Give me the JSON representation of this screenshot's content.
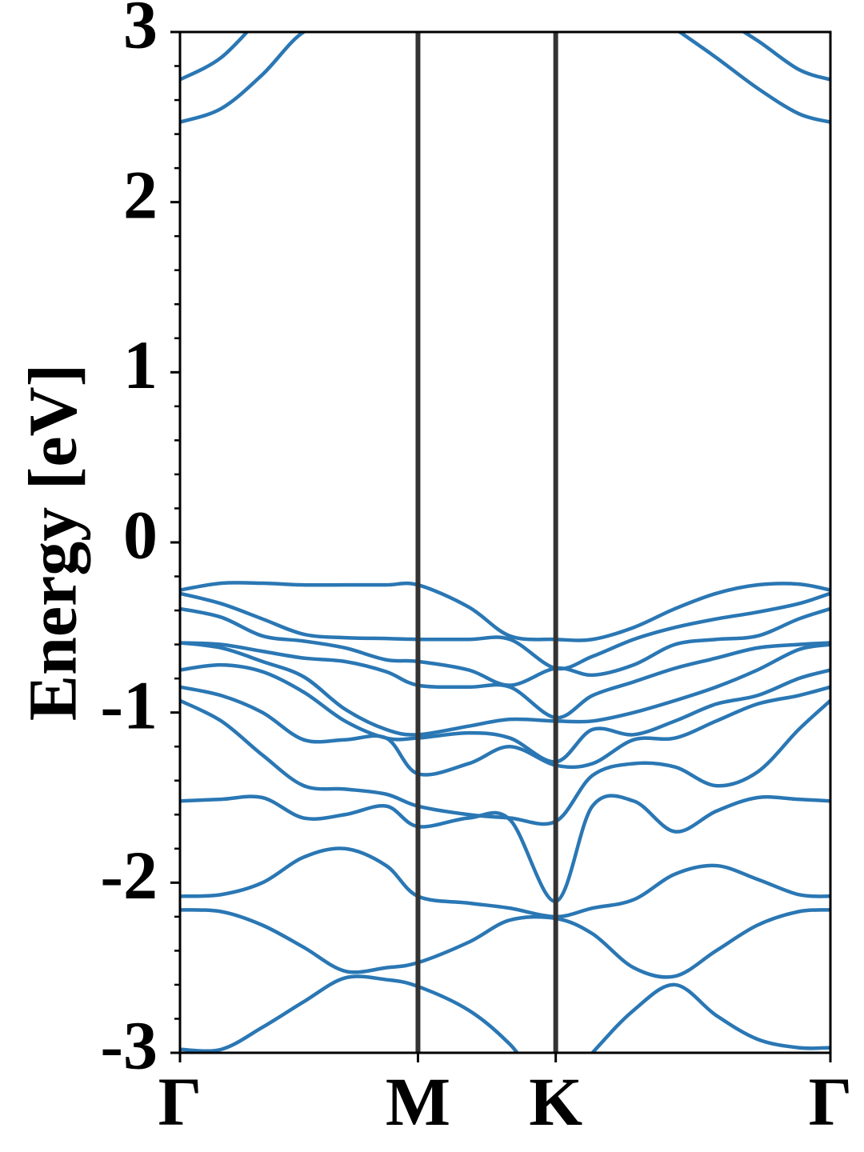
{
  "chart_data": {
    "type": "line",
    "y_label": "Energy [eV]",
    "xlim": [
      0,
      1.577
    ],
    "ylim": [
      -3,
      3
    ],
    "xticks": [
      {
        "value": 0,
        "label": "Γ"
      },
      {
        "value": 0.577,
        "label": "M"
      },
      {
        "value": 0.911,
        "label": "K"
      },
      {
        "value": 1.577,
        "label": "Γ"
      }
    ],
    "yticks": [
      -3,
      -2,
      -1,
      0,
      1,
      2,
      3
    ],
    "yminorticks": [
      -2.8,
      -2.6,
      -2.4,
      -2.2,
      -1.8,
      -1.6,
      -1.4,
      -1.2,
      -0.8,
      -0.6,
      -0.4,
      -0.2,
      0.2,
      0.4,
      0.6,
      0.8,
      1.2,
      1.4,
      1.6,
      1.8,
      2.2,
      2.4,
      2.6,
      2.8
    ],
    "x": [
      0,
      0.1,
      0.2,
      0.3,
      0.4,
      0.5,
      0.577,
      0.7,
      0.8,
      0.911,
      1.0,
      1.1,
      1.2,
      1.3,
      1.4,
      1.5,
      1.577
    ],
    "symmetry_lines": true,
    "symmetry_line_color": "#333333",
    "series": [
      {
        "color": "#2a77b4",
        "values": [
          2.47,
          2.55,
          2.75,
          3.0,
          3.05,
          null,
          null,
          null,
          null,
          null,
          null,
          null,
          3.02,
          2.85,
          2.67,
          2.52,
          2.47
        ]
      },
      {
        "color": "#2a77b4",
        "values": [
          2.72,
          2.85,
          3.1,
          null,
          null,
          null,
          null,
          null,
          null,
          null,
          null,
          null,
          null,
          3.1,
          2.95,
          2.78,
          2.72
        ]
      },
      {
        "color": "#2a77b4",
        "values": [
          -0.28,
          -0.24,
          -0.24,
          -0.25,
          -0.25,
          -0.25,
          -0.25,
          -0.38,
          -0.55,
          -0.57,
          -0.57,
          -0.5,
          -0.39,
          -0.3,
          -0.25,
          -0.245,
          -0.28
        ]
      },
      {
        "color": "#2a77b4",
        "values": [
          -0.3,
          -0.36,
          -0.45,
          -0.54,
          -0.56,
          -0.565,
          -0.57,
          -0.57,
          -0.57,
          -0.74,
          -0.67,
          -0.57,
          -0.5,
          -0.45,
          -0.41,
          -0.36,
          -0.3
        ]
      },
      {
        "color": "#2a77b4",
        "values": [
          -0.39,
          -0.44,
          -0.55,
          -0.58,
          -0.62,
          -0.69,
          -0.7,
          -0.75,
          -0.84,
          -0.74,
          -0.78,
          -0.72,
          -0.6,
          -0.57,
          -0.55,
          -0.45,
          -0.39
        ]
      },
      {
        "color": "#2a77b4",
        "values": [
          -0.59,
          -0.6,
          -0.64,
          -0.68,
          -0.7,
          -0.76,
          -0.84,
          -0.85,
          -0.85,
          -1.03,
          -0.9,
          -0.82,
          -0.74,
          -0.68,
          -0.62,
          -0.6,
          -0.59
        ]
      },
      {
        "color": "#2a77b4",
        "values": [
          -0.59,
          -0.62,
          -0.7,
          -0.79,
          -0.98,
          -1.1,
          -1.13,
          -1.08,
          -1.04,
          -1.05,
          -1.05,
          -1.0,
          -0.93,
          -0.85,
          -0.75,
          -0.63,
          -0.6
        ]
      },
      {
        "color": "#2a77b4",
        "values": [
          -0.75,
          -0.72,
          -0.76,
          -0.88,
          -1.05,
          -1.15,
          -1.15,
          -1.12,
          -1.15,
          -1.29,
          -1.1,
          -1.13,
          -1.05,
          -0.95,
          -0.9,
          -0.8,
          -0.75
        ]
      },
      {
        "color": "#2a77b4",
        "values": [
          -0.85,
          -0.9,
          -1.0,
          -1.16,
          -1.16,
          -1.15,
          -1.36,
          -1.3,
          -1.2,
          -1.31,
          -1.3,
          -1.16,
          -1.15,
          -1.05,
          -0.95,
          -0.9,
          -0.85
        ]
      },
      {
        "color": "#2a77b4",
        "values": [
          -0.93,
          -1.05,
          -1.25,
          -1.43,
          -1.45,
          -1.48,
          -1.55,
          -1.6,
          -1.62,
          -1.64,
          -1.37,
          -1.3,
          -1.32,
          -1.43,
          -1.35,
          -1.1,
          -0.93
        ]
      },
      {
        "color": "#2a77b4",
        "values": [
          -1.52,
          -1.51,
          -1.5,
          -1.62,
          -1.6,
          -1.55,
          -1.67,
          -1.62,
          -1.63,
          -2.11,
          -1.55,
          -1.52,
          -1.7,
          -1.58,
          -1.5,
          -1.51,
          -1.52
        ]
      },
      {
        "color": "#2a77b4",
        "values": [
          -2.08,
          -2.07,
          -2.0,
          -1.85,
          -1.8,
          -1.9,
          -2.08,
          -2.12,
          -2.15,
          -2.2,
          -2.15,
          -2.1,
          -1.95,
          -1.9,
          -1.98,
          -2.07,
          -2.08
        ]
      },
      {
        "color": "#2a77b4",
        "values": [
          -2.16,
          -2.17,
          -2.25,
          -2.38,
          -2.52,
          -2.5,
          -2.47,
          -2.35,
          -2.22,
          -2.21,
          -2.3,
          -2.5,
          -2.55,
          -2.4,
          -2.25,
          -2.17,
          -2.16
        ]
      },
      {
        "color": "#2a77b4",
        "values": [
          -2.98,
          -2.98,
          -2.85,
          -2.7,
          -2.56,
          -2.57,
          -2.61,
          -2.75,
          -2.95,
          -3.25,
          -3.0,
          -2.75,
          -2.6,
          -2.78,
          -2.92,
          -2.97,
          -2.97
        ]
      }
    ]
  }
}
